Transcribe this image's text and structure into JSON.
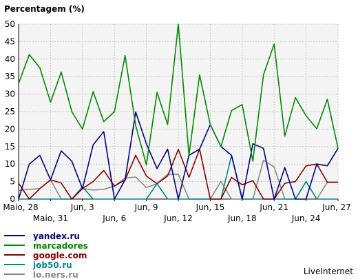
{
  "chart_data": {
    "type": "line",
    "title": "Percentagem (%)",
    "ylim": [
      0,
      50
    ],
    "yticks": [
      0,
      5,
      10,
      15,
      20,
      25,
      30,
      35,
      40,
      45,
      50
    ],
    "grid": true,
    "x_tick_labels": [
      {
        "index": 0,
        "label": "Maio, 28",
        "row": 1
      },
      {
        "index": 3,
        "label": "Maio, 31",
        "row": 2
      },
      {
        "index": 6,
        "label": "Jun, 3",
        "row": 1
      },
      {
        "index": 9,
        "label": "Jun, 6",
        "row": 2
      },
      {
        "index": 12,
        "label": "Jun, 9",
        "row": 1
      },
      {
        "index": 15,
        "label": "Jun, 12",
        "row": 2
      },
      {
        "index": 18,
        "label": "Jun, 15",
        "row": 1
      },
      {
        "index": 21,
        "label": "Jun, 18",
        "row": 2
      },
      {
        "index": 24,
        "label": "Jun, 21",
        "row": 1
      },
      {
        "index": 27,
        "label": "Jun, 24",
        "row": 2
      },
      {
        "index": 30,
        "label": "Jun, 27",
        "row": 1
      }
    ],
    "legend_position": "bottom-left",
    "series": [
      {
        "name": "marcadores",
        "color": "#008800",
        "values": [
          33,
          41.3,
          37.5,
          27.7,
          36.3,
          25,
          20,
          30.7,
          22.1,
          25,
          41,
          21,
          9.8,
          30.5,
          21.3,
          50,
          12.5,
          35.5,
          21.3,
          15,
          25.3,
          27,
          10.8,
          35.5,
          44.3,
          18,
          29,
          23.8,
          20.1,
          28.5,
          14.5
        ]
      },
      {
        "name": "yandex.ru",
        "color": "#000080",
        "values": [
          0,
          10,
          12.5,
          5.5,
          13.8,
          10.8,
          3,
          15.5,
          19.3,
          0,
          5.5,
          24.9,
          15.8,
          8.7,
          14.3,
          0,
          12.5,
          14.3,
          21.3,
          15,
          12.5,
          0,
          15.8,
          14.5,
          0,
          9,
          0,
          0,
          10,
          9.5,
          14.5
        ]
      },
      {
        "name": "google.com",
        "color": "#880000",
        "values": [
          4.5,
          0,
          3,
          5.5,
          4.6,
          0,
          3,
          5,
          8.2,
          3.7,
          5.5,
          12.5,
          6.6,
          4.4,
          6.6,
          14.2,
          6.2,
          14.3,
          0,
          0,
          6.2,
          4.1,
          5.3,
          0,
          0,
          4.5,
          5,
          9.5,
          10,
          4.8,
          4.8
        ]
      },
      {
        "name": "job50.ru",
        "color": "#008888",
        "values": [
          0,
          0,
          0,
          0,
          0,
          0,
          3.5,
          0,
          0,
          0,
          0,
          0,
          0,
          4.4,
          0,
          0,
          0,
          0,
          0,
          0,
          12.5,
          0,
          0,
          0,
          0,
          0,
          0,
          5,
          0,
          0,
          0
        ]
      },
      {
        "name": "lo.ners.ru",
        "color": "#888888",
        "values": [
          2.5,
          2.8,
          3,
          5.5,
          0,
          0,
          3,
          2.6,
          2.8,
          3.7,
          6,
          6.3,
          3.3,
          4.4,
          7.1,
          7.1,
          0,
          0,
          0,
          5,
          0,
          0,
          0,
          11.1,
          9.2,
          0,
          0,
          5,
          0,
          4.8,
          4.8
        ]
      }
    ],
    "legend_order": [
      "yandex.ru",
      "marcadores",
      "google.com",
      "job50.ru",
      "lo.ners.ru"
    ],
    "credit": "LiveInternet"
  }
}
